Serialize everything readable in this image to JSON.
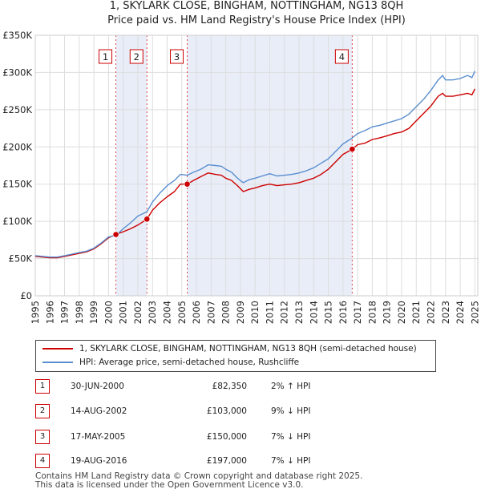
{
  "chart_data": {
    "type": "line",
    "title": "1, SKYLARK CLOSE, BINGHAM, NOTTINGHAM, NG13 8QH",
    "subtitle": "Price paid vs. HM Land Registry's House Price Index (HPI)",
    "xlabel": "",
    "ylabel": "",
    "xlim": [
      1995,
      2025.2
    ],
    "ylim": [
      0,
      350000
    ],
    "y_ticks": [
      {
        "value": 0,
        "label": "£0"
      },
      {
        "value": 50000,
        "label": "£50K"
      },
      {
        "value": 100000,
        "label": "£100K"
      },
      {
        "value": 150000,
        "label": "£150K"
      },
      {
        "value": 200000,
        "label": "£200K"
      },
      {
        "value": 250000,
        "label": "£250K"
      },
      {
        "value": 300000,
        "label": "£300K"
      },
      {
        "value": 350000,
        "label": "£350K"
      }
    ],
    "x_ticks": [
      "1995",
      "1996",
      "1997",
      "1998",
      "1999",
      "2000",
      "2001",
      "2002",
      "2003",
      "2004",
      "2005",
      "2006",
      "2007",
      "2008",
      "2009",
      "2010",
      "2011",
      "2012",
      "2013",
      "2014",
      "2015",
      "2016",
      "2017",
      "2018",
      "2019",
      "2020",
      "2021",
      "2022",
      "2023",
      "2024",
      "2025"
    ],
    "grid": true,
    "series": [
      {
        "name": "1, SKYLARK CLOSE, BINGHAM, NOTTINGHAM, NG13 8QH (semi-detached house)",
        "color": "#cc0000",
        "x": [
          1995.0,
          1995.5,
          1996.0,
          1996.5,
          1997.0,
          1997.5,
          1998.0,
          1998.5,
          1999.0,
          1999.5,
          2000.0,
          2000.5,
          2001.0,
          2001.5,
          2002.0,
          2002.62,
          2003.0,
          2003.5,
          2004.0,
          2004.5,
          2004.9,
          2005.37,
          2005.8,
          2006.3,
          2006.8,
          2007.3,
          2007.7,
          2008.0,
          2008.4,
          2008.8,
          2009.2,
          2009.6,
          2010.0,
          2010.5,
          2011.0,
          2011.5,
          2012.0,
          2012.5,
          2013.0,
          2013.5,
          2014.0,
          2014.5,
          2015.0,
          2015.5,
          2016.0,
          2016.63,
          2017.0,
          2017.5,
          2018.0,
          2018.5,
          2019.0,
          2019.5,
          2020.0,
          2020.5,
          2021.0,
          2021.5,
          2022.0,
          2022.5,
          2022.8,
          2023.0,
          2023.5,
          2024.0,
          2024.5,
          2024.8,
          2025.0
        ],
        "values": [
          53000,
          52000,
          51000,
          51000,
          53000,
          55000,
          57000,
          59000,
          63000,
          70000,
          78000,
          82350,
          86000,
          90000,
          95000,
          103000,
          115000,
          125000,
          133000,
          140000,
          150000,
          150000,
          155000,
          160000,
          165000,
          163000,
          162000,
          158000,
          155000,
          148000,
          140000,
          143000,
          145000,
          148000,
          150000,
          148000,
          149000,
          150000,
          152000,
          155000,
          158000,
          163000,
          170000,
          180000,
          190000,
          197000,
          203000,
          205000,
          210000,
          212000,
          215000,
          218000,
          220000,
          225000,
          235000,
          245000,
          255000,
          268000,
          272000,
          268000,
          268000,
          270000,
          272000,
          270000,
          278000
        ]
      },
      {
        "name": "HPI: Average price, semi-detached house, Rushcliffe",
        "color": "#5a8fd0",
        "x": [
          1995.0,
          1995.5,
          1996.0,
          1996.5,
          1997.0,
          1997.5,
          1998.0,
          1998.5,
          1999.0,
          1999.5,
          2000.0,
          2000.5,
          2001.0,
          2001.5,
          2002.0,
          2002.62,
          2003.0,
          2003.5,
          2004.0,
          2004.5,
          2004.9,
          2005.37,
          2005.8,
          2006.3,
          2006.8,
          2007.3,
          2007.7,
          2008.0,
          2008.4,
          2008.8,
          2009.2,
          2009.6,
          2010.0,
          2010.5,
          2011.0,
          2011.5,
          2012.0,
          2012.5,
          2013.0,
          2013.5,
          2014.0,
          2014.5,
          2015.0,
          2015.5,
          2016.0,
          2016.63,
          2017.0,
          2017.5,
          2018.0,
          2018.5,
          2019.0,
          2019.5,
          2020.0,
          2020.5,
          2021.0,
          2021.5,
          2022.0,
          2022.5,
          2022.8,
          2023.0,
          2023.5,
          2024.0,
          2024.5,
          2024.8,
          2025.0
        ],
        "values": [
          54000,
          53000,
          52000,
          52000,
          54000,
          56000,
          58000,
          60000,
          64000,
          71000,
          79000,
          81000,
          90000,
          98000,
          107000,
          113000,
          126000,
          138000,
          148000,
          155000,
          163000,
          162000,
          166000,
          170000,
          176000,
          175000,
          174000,
          170000,
          166000,
          158000,
          152000,
          156000,
          158000,
          161000,
          164000,
          161000,
          162000,
          163000,
          165000,
          168000,
          172000,
          178000,
          184000,
          194000,
          204000,
          212000,
          218000,
          222000,
          227000,
          229000,
          232000,
          235000,
          238000,
          244000,
          254000,
          264000,
          276000,
          290000,
          296000,
          290000,
          290000,
          292000,
          296000,
          293000,
          302000
        ]
      }
    ],
    "transactions": [
      {
        "num": "1",
        "x": 2000.5,
        "price": 82350,
        "date": "30-JUN-2000",
        "price_label": "£82,350",
        "hpi": "2% ↑ HPI"
      },
      {
        "num": "2",
        "x": 2002.62,
        "price": 103000,
        "date": "14-AUG-2002",
        "price_label": "£103,000",
        "hpi": "9% ↓ HPI"
      },
      {
        "num": "3",
        "x": 2005.37,
        "price": 150000,
        "date": "17-MAY-2005",
        "price_label": "£150,000",
        "hpi": "7% ↓ HPI"
      },
      {
        "num": "4",
        "x": 2016.63,
        "price": 197000,
        "date": "19-AUG-2016",
        "price_label": "£197,000",
        "hpi": "7% ↓ HPI"
      }
    ],
    "shaded_ranges": [
      [
        2000.5,
        2002.62
      ],
      [
        2005.37,
        2016.63
      ]
    ]
  },
  "legend": {
    "property_label": "1, SKYLARK CLOSE, BINGHAM, NOTTINGHAM, NG13 8QH (semi-detached house)",
    "hpi_label": "HPI: Average price, semi-detached house, Rushcliffe"
  },
  "colors": {
    "property": "#cc0000",
    "hpi": "#5a8fd0",
    "shade": "#e8edf8",
    "grid": "#dddddd"
  },
  "footer": {
    "line1": "Contains HM Land Registry data © Crown copyright and database right 2025.",
    "line2": "This data is licensed under the Open Government Licence v3.0."
  }
}
